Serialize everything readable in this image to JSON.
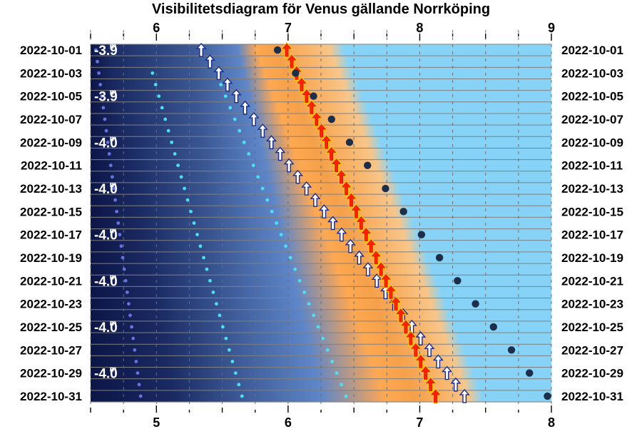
{
  "chart_data": {
    "type": "scatter",
    "title": "Visibilitetsdiagram för Venus gällande Norrköping",
    "top_axis": {
      "ticks": [
        6,
        7,
        8,
        9
      ],
      "range": [
        5.5,
        9.0
      ]
    },
    "bottom_axis": {
      "ticks": [
        5,
        6,
        7,
        8
      ],
      "range": [
        4.5,
        8.0
      ]
    },
    "dates": [
      "2022-10-01",
      "2022-10-03",
      "2022-10-05",
      "2022-10-07",
      "2022-10-09",
      "2022-10-11",
      "2022-10-13",
      "2022-10-15",
      "2022-10-17",
      "2022-10-19",
      "2022-10-21",
      "2022-10-23",
      "2022-10-25",
      "2022-10-27",
      "2022-10-29",
      "2022-10-31"
    ],
    "magnitudes": [
      {
        "date": "2022-10-01",
        "text": "-3.9",
        "sup": "m"
      },
      {
        "date": "2022-10-05",
        "text": "-3.9",
        "sup": "m"
      },
      {
        "date": "2022-10-09",
        "text": "-4.0",
        "sup": "m"
      },
      {
        "date": "2022-10-13",
        "text": "-4.0",
        "sup": "m"
      },
      {
        "date": "2022-10-17",
        "text": "-4.0",
        "sup": "m"
      },
      {
        "date": "2022-10-21",
        "text": "-4.0",
        "sup": "m"
      },
      {
        "date": "2022-10-25",
        "text": "-4.0",
        "sup": "m"
      },
      {
        "date": "2022-10-29",
        "text": "-4.0",
        "sup": "m"
      }
    ],
    "series": [
      {
        "symbol": "dot",
        "color": "#6a72e0",
        "start_date": "2022-10-01",
        "start_x": 4.54,
        "end_x": 4.88,
        "step": 1
      },
      {
        "symbol": "dot",
        "color": "#4fe0ef",
        "start_date": "2022-10-03",
        "start_x": 4.97,
        "end_x": 5.65,
        "step": 1
      },
      {
        "symbol": "dot",
        "color": "#4fe0ef",
        "start_date": "2022-10-04",
        "start_x": 5.49,
        "end_x": 6.44,
        "step": 1
      },
      {
        "symbol": "arrow",
        "color": "#ffffff",
        "stroke": "#1a2a8a",
        "start_date": "2022-10-01",
        "start_x": 5.34,
        "end_x": 7.34,
        "step": 1
      },
      {
        "symbol": "arrow",
        "color": "#ff2000",
        "stroke": "#ff2000",
        "start_date": "2022-10-01",
        "start_x": 5.99,
        "end_x": 7.12,
        "step": 1
      },
      {
        "symbol": "dot",
        "color": "#1c2e4a",
        "start_date": "2022-10-01",
        "start_x": 5.92,
        "end_x": 7.97,
        "step": 2
      }
    ],
    "background_bands": [
      "night",
      "astronomical twilight",
      "nautical twilight",
      "civil twilight",
      "sunrise",
      "daylight"
    ],
    "colors": {
      "night": "#0c1547",
      "twilight": "#5e86c8",
      "sunrise": "#f5a04a",
      "daylight": "#87d3f7",
      "grid": "#808080"
    }
  }
}
